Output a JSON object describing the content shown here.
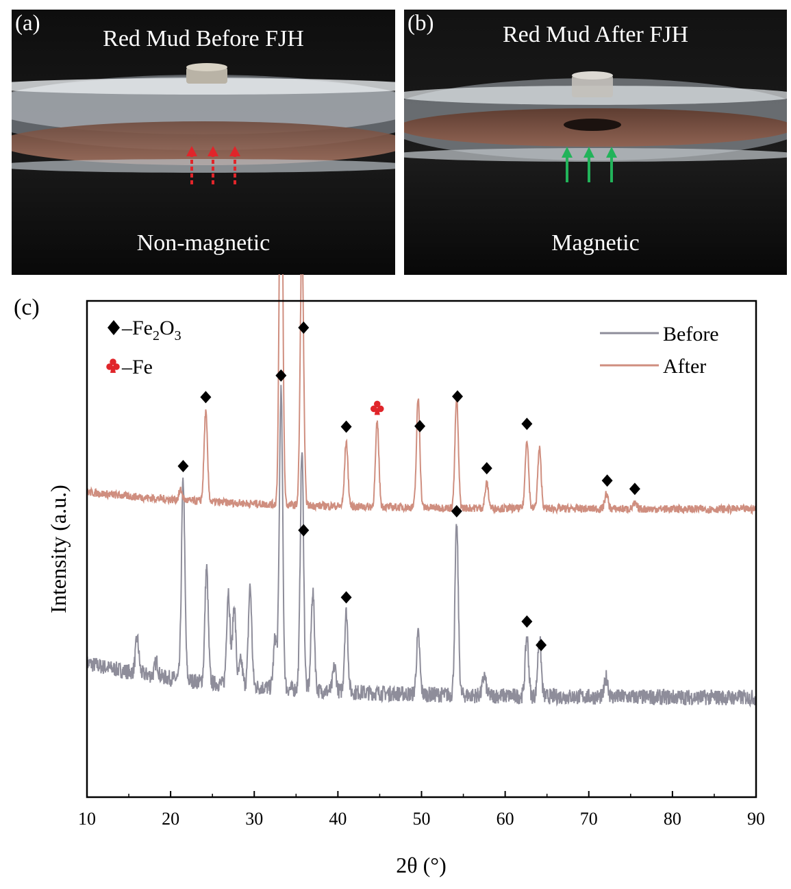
{
  "panels": {
    "a": {
      "letter": "(a)",
      "title": "Red Mud Before FJH",
      "caption": "Non-magnetic",
      "arrow_color": "#e0252a"
    },
    "b": {
      "letter": "(b)",
      "title": "Red Mud After FJH",
      "caption": "Magnetic",
      "arrow_color": "#22b35a"
    },
    "c": {
      "letter": "(c)"
    }
  },
  "chart_data": {
    "type": "line",
    "xlabel": "2θ (°)",
    "ylabel": "Intensity (a.u.)",
    "xlim": [
      10,
      90
    ],
    "xticks": [
      10,
      20,
      30,
      40,
      50,
      60,
      70,
      80,
      90
    ],
    "y_ticks_shown": false,
    "grid": false,
    "legend_position": "top-right",
    "phase_legend": [
      {
        "symbol": "diamond",
        "label": "–Fe",
        "subscript_1": "2",
        "mid": "O",
        "subscript_2": "3",
        "color": "#000000"
      },
      {
        "symbol": "club",
        "label": "–Fe",
        "color": "#e0252a"
      }
    ],
    "series": [
      {
        "name": "Before",
        "color": "#8e8d9a",
        "baseline": 0.2,
        "peaks": [
          {
            "x": 16.0,
            "h": 0.07
          },
          {
            "x": 18.3,
            "h": 0.03
          },
          {
            "x": 21.5,
            "h": 0.4
          },
          {
            "x": 24.3,
            "h": 0.23
          },
          {
            "x": 26.9,
            "h": 0.19
          },
          {
            "x": 27.6,
            "h": 0.16
          },
          {
            "x": 28.4,
            "h": 0.05
          },
          {
            "x": 29.5,
            "h": 0.2
          },
          {
            "x": 32.5,
            "h": 0.1
          },
          {
            "x": 33.2,
            "h": 0.6
          },
          {
            "x": 35.7,
            "h": 0.48
          },
          {
            "x": 37.0,
            "h": 0.2
          },
          {
            "x": 39.6,
            "h": 0.05
          },
          {
            "x": 41.0,
            "h": 0.16
          },
          {
            "x": 49.6,
            "h": 0.12
          },
          {
            "x": 54.2,
            "h": 0.34
          },
          {
            "x": 57.5,
            "h": 0.04
          },
          {
            "x": 62.6,
            "h": 0.12
          },
          {
            "x": 64.1,
            "h": 0.12
          },
          {
            "x": 72.1,
            "h": 0.04
          }
        ],
        "markers": [
          {
            "x": 21.5,
            "symbol": "diamond"
          },
          {
            "x": 33.2,
            "symbol": "diamond"
          },
          {
            "x": 35.9,
            "symbol": "diamond"
          },
          {
            "x": 41.0,
            "symbol": "diamond"
          },
          {
            "x": 54.2,
            "symbol": "diamond"
          },
          {
            "x": 62.6,
            "symbol": "diamond"
          },
          {
            "x": 64.3,
            "symbol": "diamond"
          }
        ]
      },
      {
        "name": "After",
        "color": "#cf8e7f",
        "baseline": 0.58,
        "peaks": [
          {
            "x": 21.2,
            "h": 0.02
          },
          {
            "x": 24.2,
            "h": 0.18
          },
          {
            "x": 33.2,
            "h": 0.85
          },
          {
            "x": 35.7,
            "h": 0.54
          },
          {
            "x": 41.0,
            "h": 0.13
          },
          {
            "x": 44.7,
            "h": 0.17
          },
          {
            "x": 49.6,
            "h": 0.22
          },
          {
            "x": 54.2,
            "h": 0.22
          },
          {
            "x": 57.8,
            "h": 0.05
          },
          {
            "x": 62.6,
            "h": 0.14
          },
          {
            "x": 64.1,
            "h": 0.12
          },
          {
            "x": 72.1,
            "h": 0.03
          },
          {
            "x": 75.5,
            "h": 0.01
          }
        ],
        "markers": [
          {
            "x": 24.2,
            "symbol": "diamond"
          },
          {
            "x": 33.2,
            "symbol": "diamond"
          },
          {
            "x": 35.9,
            "symbol": "diamond"
          },
          {
            "x": 41.0,
            "symbol": "diamond"
          },
          {
            "x": 44.7,
            "symbol": "club"
          },
          {
            "x": 49.8,
            "symbol": "diamond"
          },
          {
            "x": 54.3,
            "symbol": "diamond"
          },
          {
            "x": 57.8,
            "symbol": "diamond"
          },
          {
            "x": 62.6,
            "symbol": "diamond"
          },
          {
            "x": 72.2,
            "symbol": "diamond"
          },
          {
            "x": 75.5,
            "symbol": "diamond"
          }
        ]
      }
    ]
  }
}
